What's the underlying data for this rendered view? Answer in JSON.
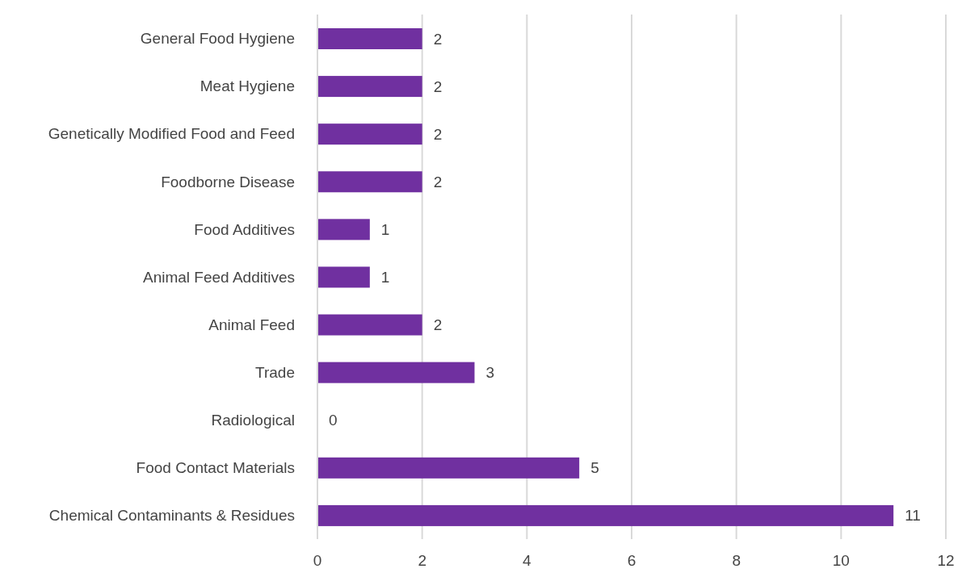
{
  "chart_data": {
    "type": "bar",
    "orientation": "horizontal",
    "categories": [
      "General Food Hygiene",
      "Meat Hygiene",
      "Genetically Modified Food and Feed",
      "Foodborne Disease",
      "Food Additives",
      "Animal Feed Additives",
      "Animal Feed",
      "Trade",
      "Radiological",
      "Food Contact Materials",
      "Chemical Contaminants & Residues"
    ],
    "values": [
      2,
      2,
      2,
      2,
      1,
      1,
      2,
      3,
      0,
      5,
      11
    ],
    "color": "#7030a0",
    "xlim": [
      0,
      12
    ],
    "xticks": [
      0,
      2,
      4,
      6,
      8,
      10,
      12
    ],
    "grid": "x",
    "data_labels": true,
    "legend": false
  }
}
